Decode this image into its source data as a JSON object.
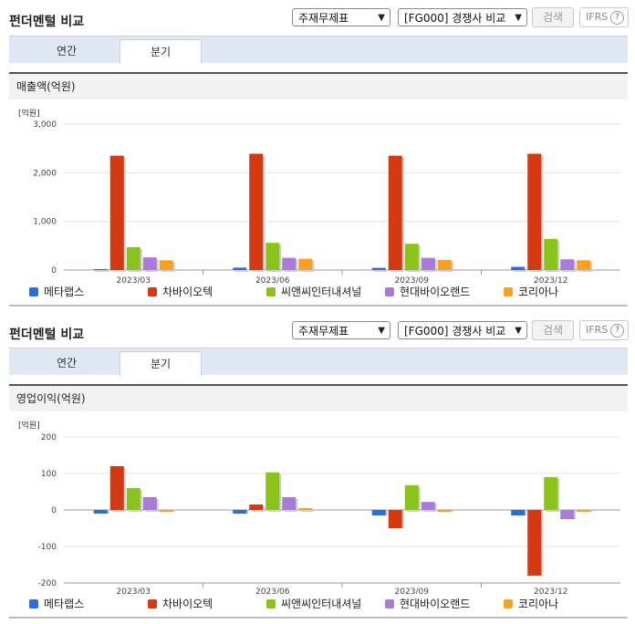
{
  "sections": [
    {
      "title": "펀더멘털 비교",
      "select1": "주재무제표",
      "select2": "[FG000] 경쟁사 비교",
      "search_label": "검색",
      "ifrs_label": "IFRS",
      "help_label": "?",
      "tabs": [
        "연간",
        "분기"
      ],
      "active_tab": "분기",
      "chart_title": "매출액(억원)",
      "unit_label": "[억원]"
    },
    {
      "title": "펀더멘털 비교",
      "select1": "주재무제표",
      "select2": "[FG000] 경쟁사 비교",
      "search_label": "검색",
      "ifrs_label": "IFRS",
      "help_label": "?",
      "tabs": [
        "연간",
        "분기"
      ],
      "active_tab": "분기",
      "chart_title": "영업이익(억원)",
      "unit_label": "[억원]"
    }
  ],
  "colors": {
    "메타랩스": "#2d6ed6",
    "차바이오텍": "#d33a12",
    "씨앤씨인터내셔널": "#8ac31b",
    "현대바이오랜드": "#a97bd8",
    "코리아나": "#f6a11f"
  },
  "chart_data": [
    {
      "type": "bar",
      "title": "매출액(억원)",
      "ylabel": "[억원]",
      "categories": [
        "2023/03",
        "2023/06",
        "2023/09",
        "2023/12"
      ],
      "ylim": [
        0,
        3000
      ],
      "yticks": [
        "0",
        "1,000",
        "2,000",
        "3,000"
      ],
      "ytick_values": [
        0,
        1000,
        2000,
        3000
      ],
      "grid": true,
      "legend": "bottom",
      "series": [
        {
          "name": "메타랩스",
          "values": [
            20,
            50,
            45,
            65
          ]
        },
        {
          "name": "차바이오텍",
          "values": [
            2350,
            2390,
            2350,
            2390
          ]
        },
        {
          "name": "씨앤씨인터내셔널",
          "values": [
            470,
            560,
            540,
            640
          ]
        },
        {
          "name": "현대바이오랜드",
          "values": [
            260,
            250,
            250,
            220
          ]
        },
        {
          "name": "코리아나",
          "values": [
            200,
            230,
            210,
            200
          ]
        }
      ]
    },
    {
      "type": "bar",
      "title": "영업이익(억원)",
      "ylabel": "[억원]",
      "categories": [
        "2023/03",
        "2023/06",
        "2023/09",
        "2023/12"
      ],
      "ylim": [
        -200,
        200
      ],
      "yticks": [
        "-200",
        "-100",
        "0",
        "100",
        "200"
      ],
      "ytick_values": [
        -200,
        -100,
        0,
        100,
        200
      ],
      "grid": true,
      "legend": "bottom",
      "series": [
        {
          "name": "메타랩스",
          "values": [
            -10,
            -10,
            -15,
            -15
          ]
        },
        {
          "name": "차바이오텍",
          "values": [
            120,
            15,
            -50,
            -180
          ]
        },
        {
          "name": "씨앤씨인터내셔널",
          "values": [
            60,
            103,
            68,
            90
          ]
        },
        {
          "name": "현대바이오랜드",
          "values": [
            35,
            35,
            22,
            -25
          ]
        },
        {
          "name": "코리아나",
          "values": [
            -5,
            5,
            -5,
            -5
          ]
        }
      ]
    }
  ]
}
